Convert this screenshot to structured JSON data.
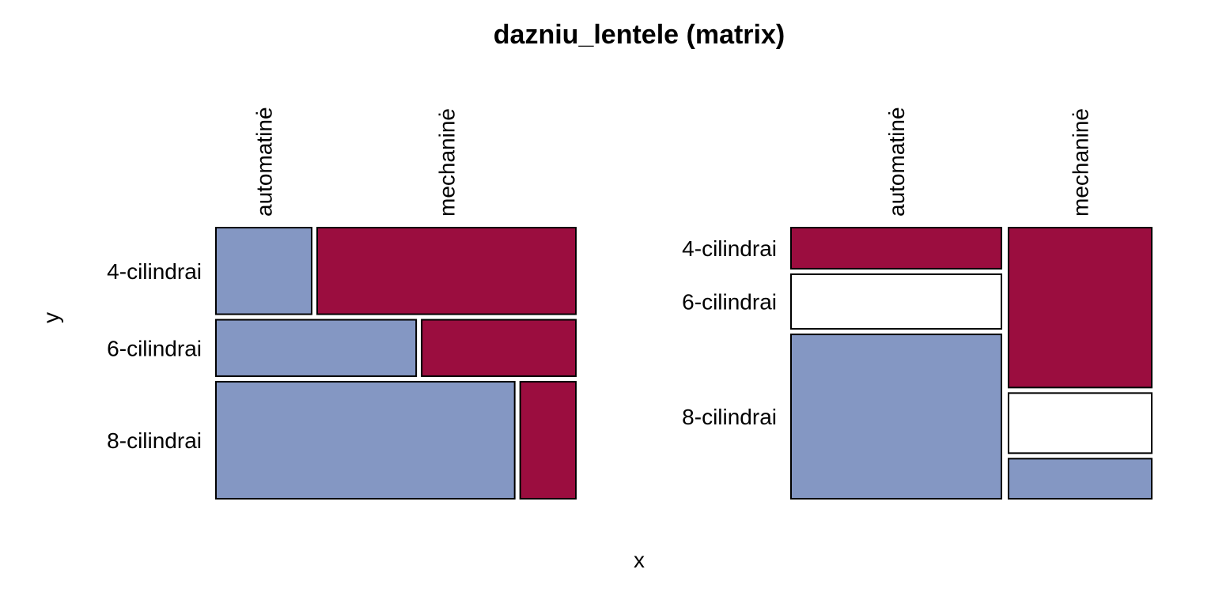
{
  "chart_data": {
    "type": "mosaic",
    "title": "dazniu_lentele (matrix)",
    "xlabel": "x",
    "ylabel": "y",
    "colors": {
      "negative": "#9B0D3F",
      "neutral": "#FFFFFF",
      "positive": "#8497C3"
    },
    "panels": [
      {
        "columns": [
          "automatinė",
          "mechaninė"
        ],
        "rows": [
          {
            "label": "4-cilindrai",
            "share": 0.333,
            "split": [
              0.27,
              0.73
            ],
            "fills": [
              "positive",
              "negative"
            ]
          },
          {
            "label": "6-cilindrai",
            "share": 0.217,
            "split": [
              0.565,
              0.435
            ],
            "fills": [
              "positive",
              "negative"
            ]
          },
          {
            "label": "8-cilindrai",
            "share": 0.45,
            "split": [
              0.843,
              0.157
            ],
            "fills": [
              "positive",
              "negative"
            ]
          }
        ]
      },
      {
        "columns": [
          {
            "label": "automatinė",
            "share": 0.595,
            "cells": [
              {
                "share": 0.158,
                "fill": "negative"
              },
              {
                "share": 0.21,
                "fill": "neutral"
              },
              {
                "share": 0.632,
                "fill": "positive"
              }
            ]
          },
          {
            "label": "mechaninė",
            "share": 0.405,
            "cells": [
              {
                "share": 0.615,
                "fill": "negative"
              },
              {
                "share": 0.231,
                "fill": "neutral"
              },
              {
                "share": 0.154,
                "fill": "positive"
              }
            ]
          }
        ],
        "rows": [
          {
            "label": "4-cilindrai"
          },
          {
            "label": "6-cilindrai"
          },
          {
            "label": "8-cilindrai"
          }
        ]
      }
    ]
  }
}
